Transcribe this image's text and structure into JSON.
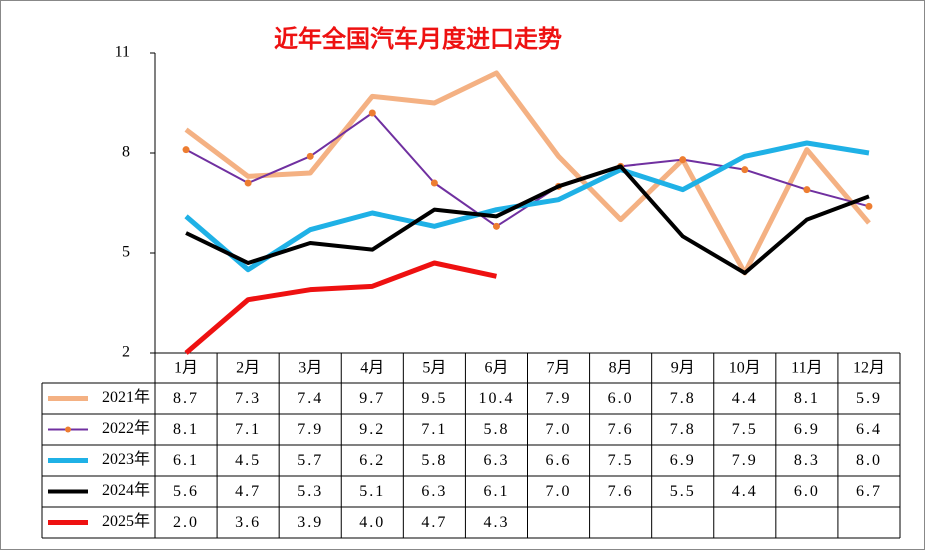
{
  "chart_data": {
    "type": "line",
    "title": "近年全国汽车月度进口走势",
    "categories": [
      "1月",
      "2月",
      "3月",
      "4月",
      "5月",
      "6月",
      "7月",
      "8月",
      "9月",
      "10月",
      "11月",
      "12月"
    ],
    "ylim": [
      2,
      11
    ],
    "yticks": [
      2,
      5,
      8,
      11
    ],
    "grid": false,
    "legend": "table",
    "series": [
      {
        "name": "2021年",
        "color": "#f4b183",
        "line_width": 5,
        "values": [
          8.7,
          7.3,
          7.4,
          9.7,
          9.5,
          10.4,
          7.9,
          6.0,
          7.8,
          4.4,
          8.1,
          5.9
        ],
        "value_labels": [
          "8.7",
          "7.3",
          "7.4",
          "9.7",
          "9.5",
          "10.4",
          "7.9",
          "6.0",
          "7.8",
          "4.4",
          "8.1",
          "5.9"
        ]
      },
      {
        "name": "2022年",
        "color": "#7030a0",
        "line_width": 2,
        "marker": "circle",
        "marker_color": "#ed7d31",
        "values": [
          8.1,
          7.1,
          7.9,
          9.2,
          7.1,
          5.8,
          7.0,
          7.6,
          7.8,
          7.5,
          6.9,
          6.4
        ],
        "value_labels": [
          "8.1",
          "7.1",
          "7.9",
          "9.2",
          "7.1",
          "5.8",
          "7.0",
          "7.6",
          "7.8",
          "7.5",
          "6.9",
          "6.4"
        ]
      },
      {
        "name": "2023年",
        "color": "#1fb1e6",
        "line_width": 5,
        "values": [
          6.1,
          4.5,
          5.7,
          6.2,
          5.8,
          6.3,
          6.6,
          7.5,
          6.9,
          7.9,
          8.3,
          8.0
        ],
        "value_labels": [
          "6.1",
          "4.5",
          "5.7",
          "6.2",
          "5.8",
          "6.3",
          "6.6",
          "7.5",
          "6.9",
          "7.9",
          "8.3",
          "8.0"
        ]
      },
      {
        "name": "2024年",
        "color": "#000000",
        "line_width": 4,
        "values": [
          5.6,
          4.7,
          5.3,
          5.1,
          6.3,
          6.1,
          7.0,
          7.6,
          5.5,
          4.4,
          6.0,
          6.7
        ],
        "value_labels": [
          "5.6",
          "4.7",
          "5.3",
          "5.1",
          "6.3",
          "6.1",
          "7.0",
          "7.6",
          "5.5",
          "4.4",
          "6.0",
          "6.7"
        ]
      },
      {
        "name": "2025年",
        "color": "#ee1111",
        "line_width": 5,
        "values": [
          2.0,
          3.6,
          3.9,
          4.0,
          4.7,
          4.3,
          null,
          null,
          null,
          null,
          null,
          null
        ],
        "value_labels": [
          "2.0",
          "3.6",
          "3.9",
          "4.0",
          "4.7",
          "4.3",
          null,
          null,
          null,
          null,
          null,
          null
        ]
      }
    ]
  }
}
